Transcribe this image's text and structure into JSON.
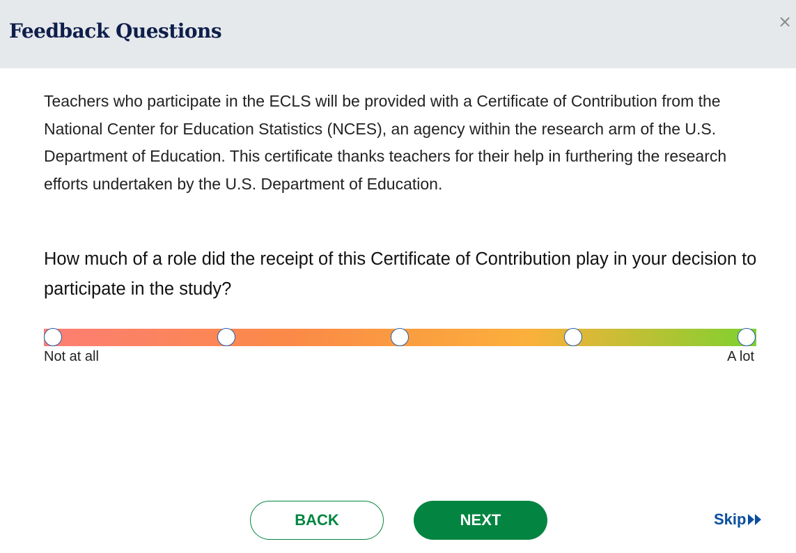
{
  "header": {
    "title": "Feedback Questions",
    "close_icon": "close-icon",
    "close_label": "×"
  },
  "intro": "Teachers who participate in the ECLS will be provided with a Certificate of Contribution from the National Center for Education Statistics (NCES), an agency within the research arm of the U.S. Department of Education. This certificate thanks teachers for their help in furthering the research efforts undertaken by the U.S. Department of Education.",
  "question": "How much of a role did the receipt of this Certificate of Contribution play in your decision to participate in the study?",
  "scale": {
    "points": 5,
    "selected": null,
    "min_label": "Not at all",
    "max_label": "A lot",
    "colors": [
      "#fd7e74",
      "#fb8a47",
      "#fbb03b",
      "#7ed12e"
    ]
  },
  "buttons": {
    "back": "BACK",
    "next": "NEXT",
    "skip": "Skip",
    "skip_icon": "fast-forward-icon"
  },
  "colors": {
    "primary": "#038541",
    "link": "#0a4f9e",
    "title": "#0f1f4b",
    "header_bg": "#e6e9ec"
  }
}
